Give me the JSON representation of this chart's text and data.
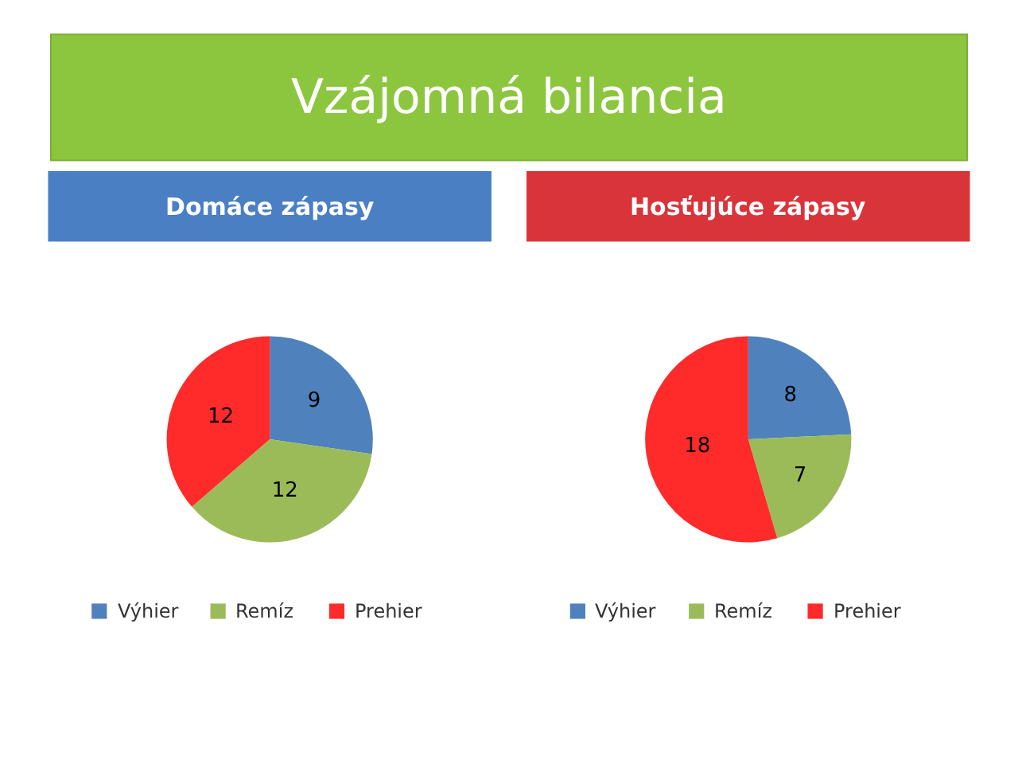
{
  "chart_data": [
    {
      "type": "other",
      "title": "Vzájomná bilancia"
    },
    {
      "type": "pie",
      "title": "Domáce zápasy",
      "categories": [
        "Výhier",
        "Remíz",
        "Prehier"
      ],
      "values": [
        9,
        12,
        12
      ],
      "colors": [
        "#4f81bd",
        "#9bbb59",
        "#ff2a2a"
      ],
      "data_labels": true,
      "legend": "bottom"
    },
    {
      "type": "pie",
      "title": "Hosťujúce zápasy",
      "categories": [
        "Výhier",
        "Remíz",
        "Prehier"
      ],
      "values": [
        8,
        7,
        18
      ],
      "colors": [
        "#4f81bd",
        "#9bbb59",
        "#ff2a2a"
      ],
      "data_labels": true,
      "legend": "bottom"
    }
  ]
}
